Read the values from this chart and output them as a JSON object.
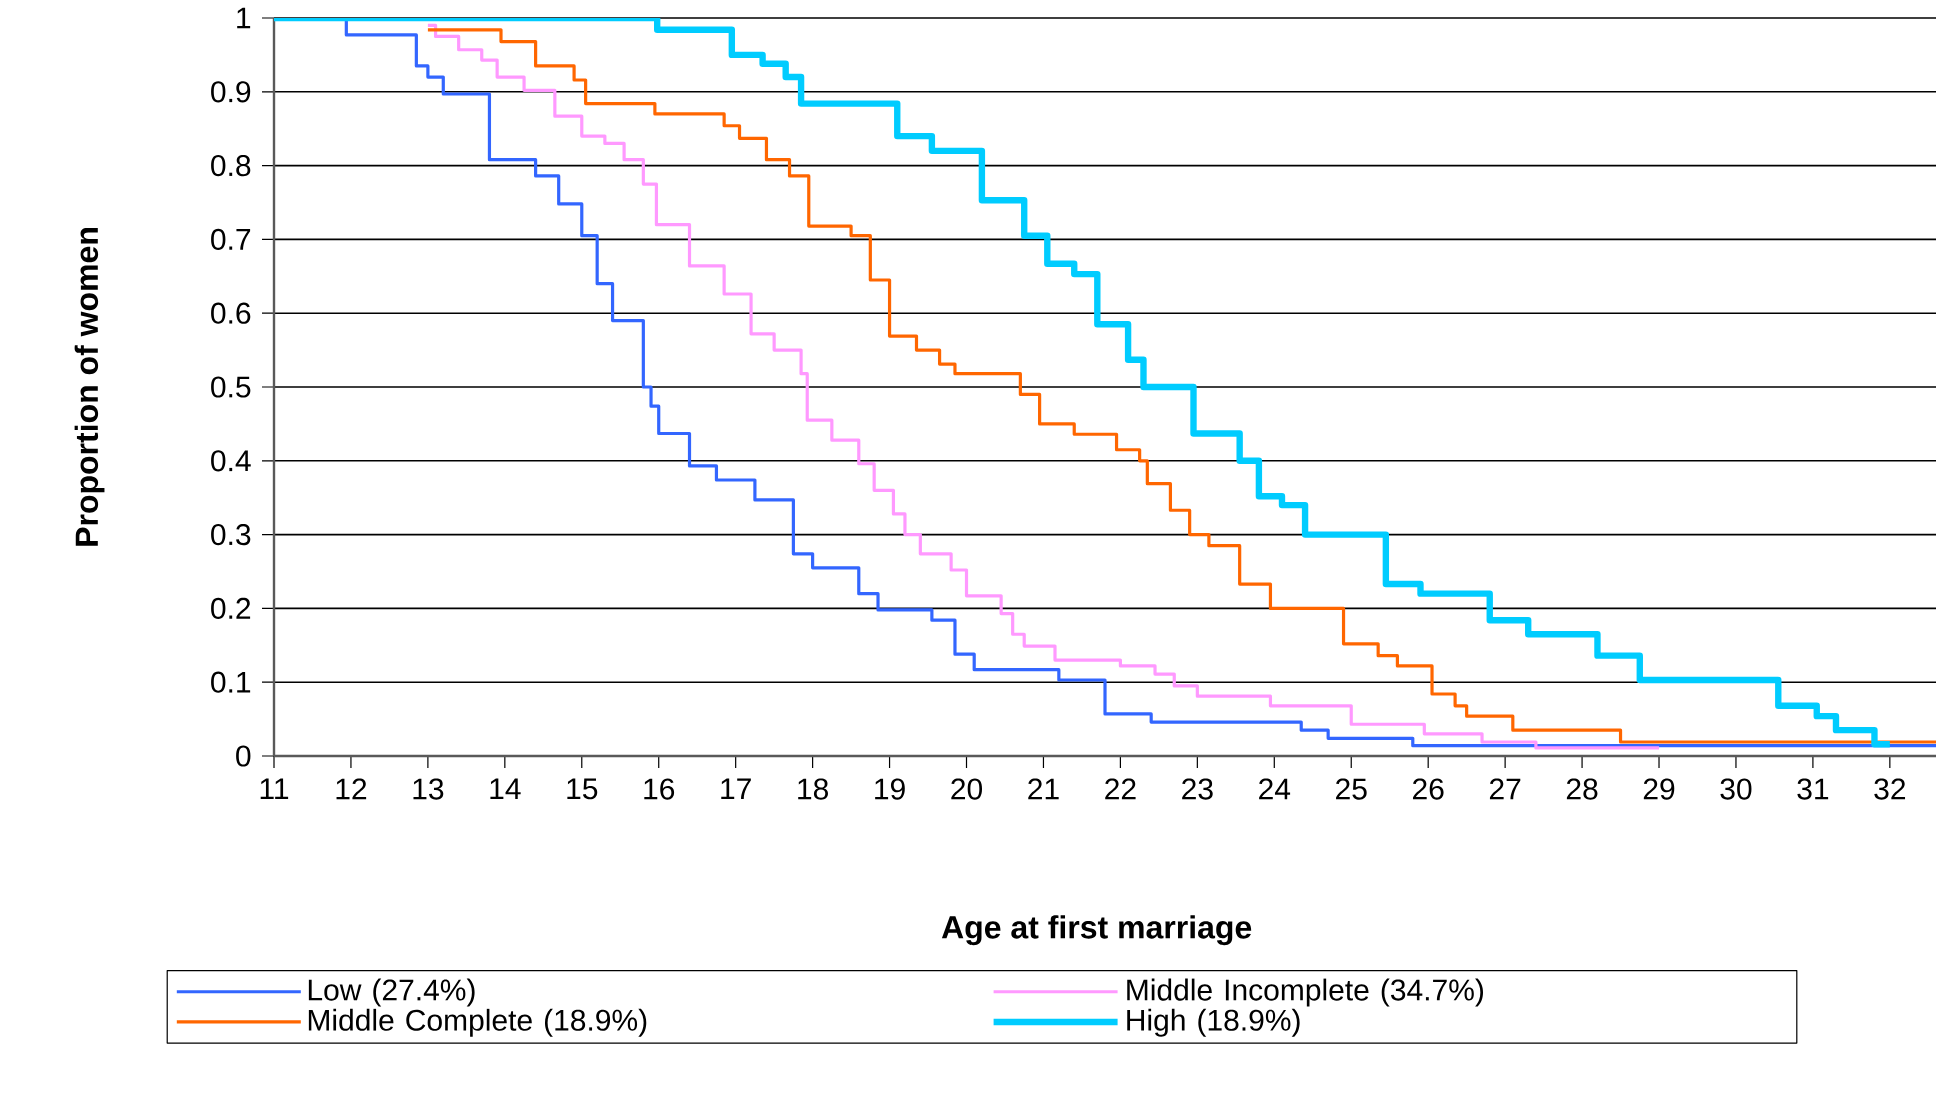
{
  "chart_data": {
    "type": "step",
    "xlabel": "Age at first marriage",
    "ylabel": "Proportion of women",
    "xlim": [
      11,
      32.6
    ],
    "ylim": [
      0,
      1
    ],
    "xticks": [
      11,
      12,
      13,
      14,
      15,
      16,
      17,
      18,
      19,
      20,
      21,
      22,
      23,
      24,
      25,
      26,
      27,
      28,
      29,
      30,
      31,
      32
    ],
    "yticks": [
      0,
      0.1,
      0.2,
      0.3,
      0.4,
      0.5,
      0.6,
      0.7,
      0.8,
      0.9,
      1
    ],
    "grid": "y",
    "legend": "bottom",
    "line_style": "solid",
    "marker": "none",
    "series": [
      {
        "name": "Low (27.4%)",
        "color": "#3366ff",
        "x": [
          11,
          11.94,
          12.85,
          13.0,
          13.2,
          13.8,
          14.4,
          14.7,
          15.0,
          15.2,
          15.4,
          15.8,
          15.9,
          16.0,
          16.4,
          16.75,
          17.25,
          17.75,
          18.0,
          18.6,
          18.85,
          19.55,
          19.85,
          20.1,
          21.2,
          21.8,
          22.4,
          24.35,
          24.7,
          25.8,
          32.6
        ],
        "values": [
          1,
          0.977,
          0.935,
          0.92,
          0.897,
          0.808,
          0.786,
          0.748,
          0.705,
          0.64,
          0.59,
          0.5,
          0.474,
          0.437,
          0.393,
          0.374,
          0.347,
          0.274,
          0.255,
          0.22,
          0.198,
          0.184,
          0.138,
          0.117,
          0.103,
          0.057,
          0.046,
          0.035,
          0.024,
          0.014,
          0.014
        ]
      },
      {
        "name": "Middle Incomplete (34.7%)",
        "color": "#ff99ff",
        "x": [
          13.0,
          13.1,
          13.4,
          13.7,
          13.9,
          14.25,
          14.65,
          15.0,
          15.3,
          15.55,
          15.8,
          15.97,
          16.4,
          16.85,
          17.2,
          17.5,
          17.85,
          17.93,
          18.25,
          18.6,
          18.8,
          19.05,
          19.2,
          19.4,
          19.8,
          20.0,
          20.45,
          20.6,
          20.75,
          21.15,
          22.0,
          22.45,
          22.7,
          23.0,
          23.95,
          25.0,
          25.95,
          26.7,
          27.4,
          29.0
        ],
        "values": [
          0.99,
          0.975,
          0.957,
          0.943,
          0.92,
          0.902,
          0.867,
          0.84,
          0.83,
          0.808,
          0.775,
          0.72,
          0.664,
          0.626,
          0.572,
          0.55,
          0.518,
          0.455,
          0.428,
          0.396,
          0.36,
          0.328,
          0.3,
          0.274,
          0.252,
          0.217,
          0.193,
          0.165,
          0.149,
          0.13,
          0.122,
          0.111,
          0.095,
          0.081,
          0.068,
          0.043,
          0.03,
          0.019,
          0.011,
          0.011
        ]
      },
      {
        "name": "Middle Complete (18.9%)",
        "color": "#ff6600",
        "x": [
          13.0,
          13.95,
          14.4,
          14.9,
          15.05,
          15.95,
          16.85,
          17.05,
          17.4,
          17.7,
          17.95,
          18.5,
          18.75,
          19.0,
          19.35,
          19.65,
          19.85,
          20.7,
          20.95,
          21.4,
          21.95,
          22.25,
          22.35,
          22.65,
          22.9,
          23.15,
          23.55,
          23.95,
          24.9,
          25.35,
          25.6,
          26.05,
          26.35,
          26.5,
          27.1,
          28.5,
          32.6
        ],
        "values": [
          0.984,
          0.968,
          0.935,
          0.916,
          0.884,
          0.87,
          0.854,
          0.837,
          0.808,
          0.786,
          0.718,
          0.705,
          0.645,
          0.569,
          0.55,
          0.531,
          0.518,
          0.49,
          0.45,
          0.436,
          0.415,
          0.4,
          0.369,
          0.333,
          0.3,
          0.285,
          0.233,
          0.2,
          0.152,
          0.136,
          0.122,
          0.084,
          0.068,
          0.054,
          0.035,
          0.019,
          0.019
        ]
      },
      {
        "name": "High (18.9%)",
        "color": "#00ccff",
        "x": [
          11,
          15.98,
          16.95,
          17.35,
          17.65,
          17.85,
          19.1,
          19.55,
          20.2,
          20.75,
          21.05,
          21.4,
          21.7,
          22.1,
          22.3,
          22.95,
          23.55,
          23.8,
          24.1,
          24.4,
          25.45,
          25.9,
          26.8,
          27.3,
          28.2,
          28.75,
          30.55,
          31.05,
          31.3,
          31.8,
          32.0
        ],
        "values": [
          1,
          0.984,
          0.95,
          0.938,
          0.92,
          0.884,
          0.84,
          0.82,
          0.753,
          0.705,
          0.667,
          0.653,
          0.585,
          0.537,
          0.5,
          0.437,
          0.4,
          0.352,
          0.34,
          0.3,
          0.233,
          0.22,
          0.184,
          0.165,
          0.136,
          0.103,
          0.068,
          0.054,
          0.035,
          0.016,
          0.016
        ]
      }
    ]
  }
}
